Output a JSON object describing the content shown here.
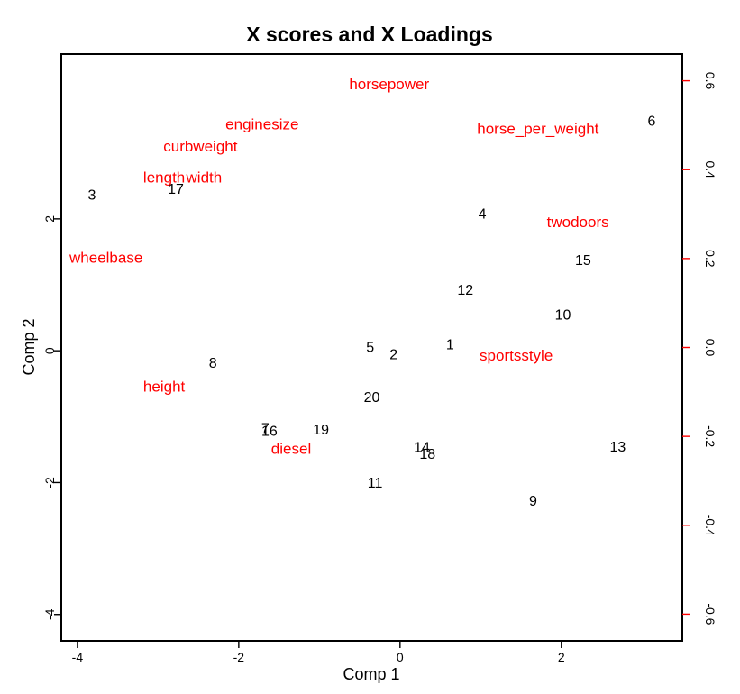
{
  "chart_data": {
    "type": "scatter",
    "title": "X scores and X Loadings",
    "xlabel": "Comp 1",
    "ylabel": "Comp 2",
    "xlim": [
      -4.2,
      3.5
    ],
    "ylim": [
      -4.4,
      4.5
    ],
    "xticks": [
      "-4",
      "-2",
      "0",
      "2"
    ],
    "xtick_values": [
      -4,
      -2,
      0,
      2
    ],
    "yticks": [
      "-4",
      "-2",
      "0",
      "2"
    ],
    "ytick_values": [
      -4,
      -2,
      0,
      2
    ],
    "y2lim": [
      -0.66,
      0.66
    ],
    "y2ticks": [
      "-0.6",
      "-0.4",
      "-0.2",
      "0.0",
      "0.2",
      "0.4",
      "0.6"
    ],
    "y2tick_values": [
      -0.6,
      -0.4,
      -0.2,
      0.0,
      0.2,
      0.4,
      0.6
    ],
    "grid": false,
    "colors": {
      "scores": "#000000",
      "loadings": "#ff0000",
      "right_axis": "#ff0000"
    },
    "scores": [
      {
        "label": "1",
        "x": 0.62,
        "y": 0.08
      },
      {
        "label": "2",
        "x": -0.08,
        "y": -0.07
      },
      {
        "label": "3",
        "x": -3.82,
        "y": 2.35
      },
      {
        "label": "4",
        "x": 1.02,
        "y": 2.06
      },
      {
        "label": "5",
        "x": -0.37,
        "y": 0.04
      },
      {
        "label": "6",
        "x": 3.12,
        "y": 3.47
      },
      {
        "label": "7",
        "x": -1.67,
        "y": -1.19
      },
      {
        "label": "8",
        "x": -2.32,
        "y": -0.2
      },
      {
        "label": "9",
        "x": 1.65,
        "y": -2.29
      },
      {
        "label": "10",
        "x": 2.02,
        "y": 0.53
      },
      {
        "label": "11",
        "x": -0.31,
        "y": -2.02
      },
      {
        "label": "12",
        "x": 0.81,
        "y": 0.91
      },
      {
        "label": "13",
        "x": 2.7,
        "y": -1.47
      },
      {
        "label": "14",
        "x": 0.27,
        "y": -1.48
      },
      {
        "label": "15",
        "x": 2.27,
        "y": 1.36
      },
      {
        "label": "16",
        "x": -1.62,
        "y": -1.23
      },
      {
        "label": "17",
        "x": -2.78,
        "y": 2.44
      },
      {
        "label": "18",
        "x": 0.34,
        "y": -1.58
      },
      {
        "label": "19",
        "x": -0.98,
        "y": -1.21
      },
      {
        "label": "20",
        "x": -0.35,
        "y": -0.72
      }
    ],
    "loadings": [
      {
        "label": "horsepower",
        "x": -0.03,
        "y": 0.59
      },
      {
        "label": "enginesize",
        "x": -0.38,
        "y": 0.5
      },
      {
        "label": "horse_per_weight",
        "x": 0.38,
        "y": 0.49
      },
      {
        "label": "curbweight",
        "x": -0.55,
        "y": 0.45
      },
      {
        "label": "length",
        "x": -0.65,
        "y": 0.38
      },
      {
        "label": "width",
        "x": -0.54,
        "y": 0.38
      },
      {
        "label": "twodoors",
        "x": 0.49,
        "y": 0.28
      },
      {
        "label": "wheelbase",
        "x": -0.81,
        "y": 0.2
      },
      {
        "label": "sportsstyle",
        "x": 0.32,
        "y": -0.02
      },
      {
        "label": "height",
        "x": -0.65,
        "y": -0.09
      },
      {
        "label": "diesel",
        "x": -0.3,
        "y": -0.23
      }
    ],
    "loading_x_scale": 4.5
  }
}
